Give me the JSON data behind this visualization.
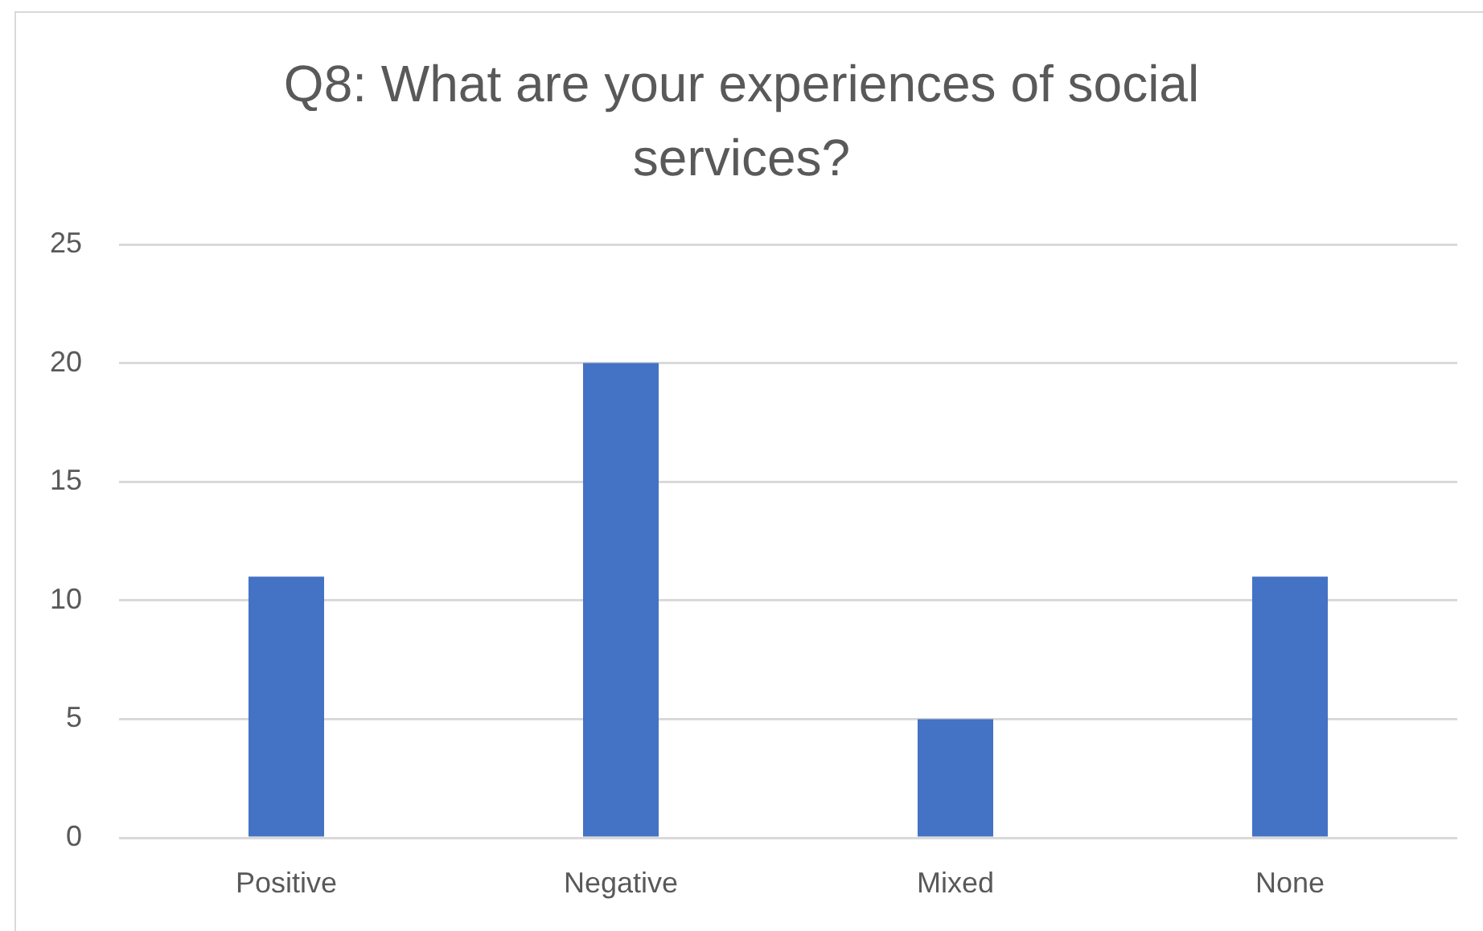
{
  "chart_data": {
    "type": "bar",
    "title": "Q8: What are your experiences of social services?",
    "categories": [
      "Positive",
      "Negative",
      "Mixed",
      "None"
    ],
    "values": [
      11,
      20,
      5,
      11
    ],
    "color": "#4472c4",
    "ylim": [
      0,
      25
    ],
    "yticks": [
      0,
      5,
      10,
      15,
      20,
      25
    ],
    "grid": "y",
    "legend": false
  }
}
